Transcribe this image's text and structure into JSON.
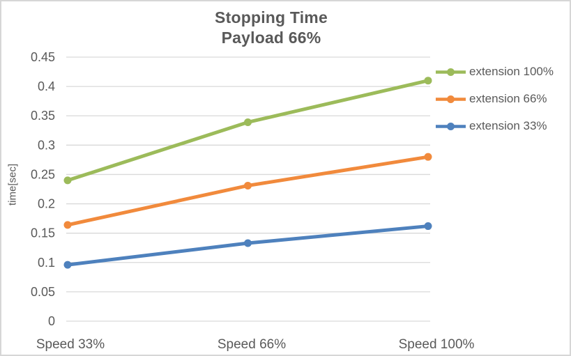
{
  "title": {
    "line1": "Stopping Time",
    "line2": "Payload 66%"
  },
  "chart_data": {
    "type": "line",
    "categories": [
      "Speed 33%",
      "Speed 66%",
      "Speed 100%"
    ],
    "series": [
      {
        "name": "extension 100%",
        "color": "#9CBB5A",
        "values": [
          0.24,
          0.339,
          0.41
        ]
      },
      {
        "name": "extension 66%",
        "color": "#F18A3C",
        "values": [
          0.164,
          0.231,
          0.28
        ]
      },
      {
        "name": "extension 33%",
        "color": "#4E81BD",
        "values": [
          0.096,
          0.133,
          0.162
        ]
      }
    ],
    "title": "Stopping Time",
    "subtitle": "Payload 66%",
    "xlabel": "",
    "ylabel": "time[sec]",
    "ylim": [
      0,
      0.45
    ],
    "ytick_step": 0.05,
    "ytick_labels": [
      "0",
      "0.05",
      "0.1",
      "0.15",
      "0.2",
      "0.25",
      "0.3",
      "0.35",
      "0.4",
      "0.45"
    ],
    "grid": true,
    "legend_position": "right",
    "marker": "circle"
  },
  "colors": {
    "text": "#595959",
    "gridline": "#D9D9D9",
    "background": "#FFFFFF",
    "frame_border": "#D6D6D6"
  }
}
